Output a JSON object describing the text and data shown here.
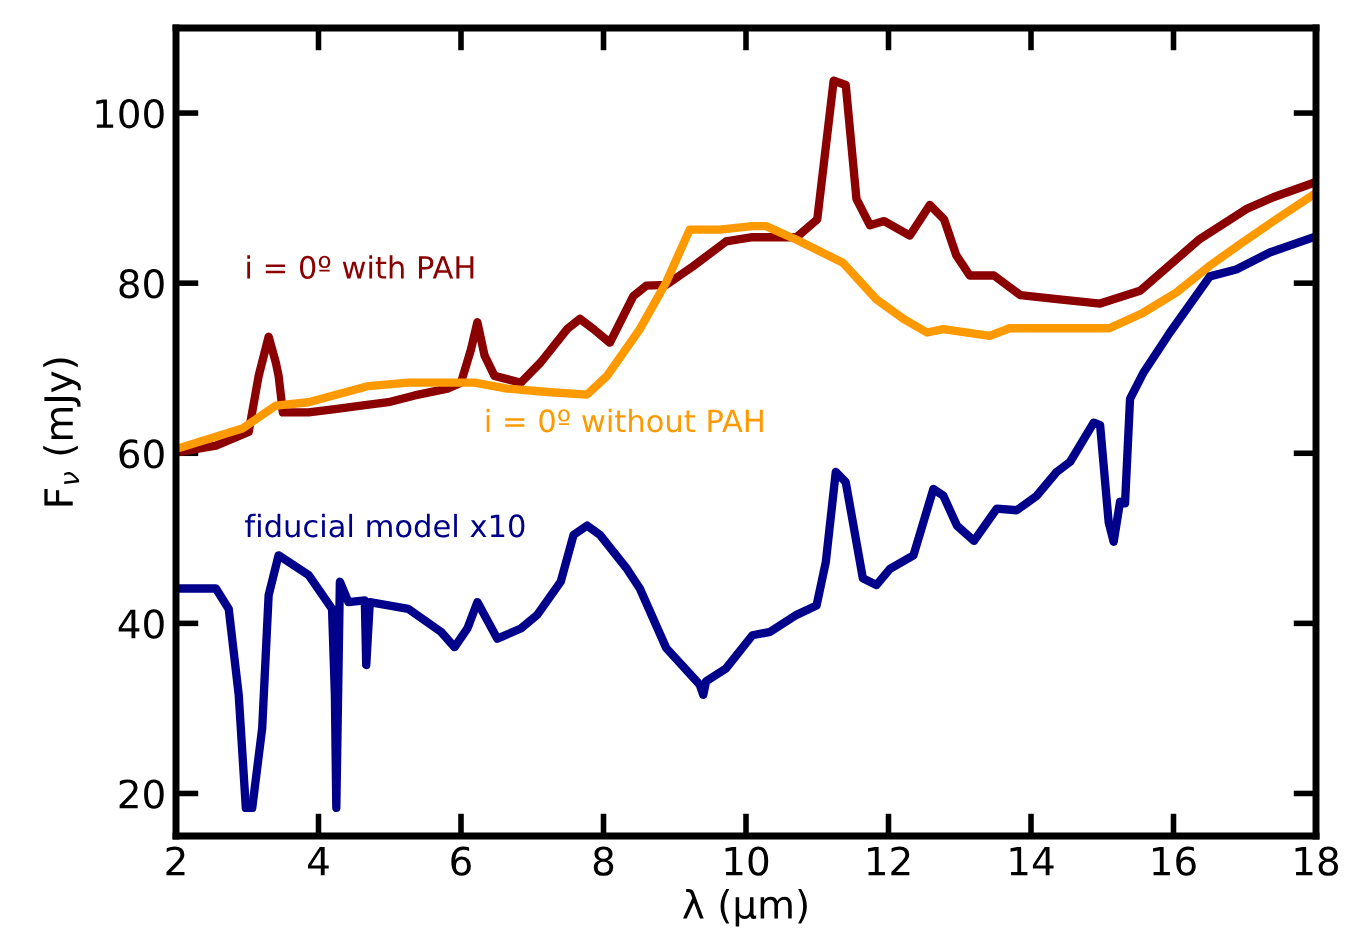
{
  "chart_data": {
    "type": "line",
    "xlabel": "λ (μm)",
    "ylabel": "F$_{ν}$ (mJy)",
    "xlim": [
      2,
      18
    ],
    "ylim": [
      15,
      110
    ],
    "xticks": [
      2,
      4,
      6,
      8,
      10,
      12,
      14,
      16,
      18
    ],
    "yticks": [
      20,
      40,
      60,
      80,
      100
    ],
    "grid": false,
    "legend": false,
    "marker": "none",
    "line_style": "solid",
    "series": [
      {
        "name": "i = 0º with PAH",
        "color": "#8b0000",
        "x": [
          2,
          2.56,
          3.02,
          3.16,
          3.3,
          3.4,
          3.44,
          3.5,
          3.86,
          4.23,
          4.6,
          4.98,
          5.35,
          5.81,
          6.0,
          6.14,
          6.23,
          6.33,
          6.47,
          6.84,
          7.12,
          7.49,
          7.67,
          7.86,
          8.09,
          8.42,
          8.6,
          8.88,
          9.26,
          9.72,
          10.09,
          10.71,
          11.0,
          11.23,
          11.4,
          11.55,
          11.74,
          11.94,
          12.3,
          12.58,
          12.78,
          12.95,
          13.14,
          13.48,
          13.85,
          14.4,
          14.97,
          15.53,
          16.37,
          17.02,
          17.4,
          17.97
        ],
        "values": [
          60.1,
          60.9,
          62.5,
          69.1,
          73.7,
          70.7,
          69.1,
          64.8,
          64.8,
          65.2,
          65.6,
          66.0,
          66.8,
          67.6,
          68.3,
          72.2,
          75.4,
          71.5,
          69.1,
          68.3,
          70.7,
          74.6,
          75.8,
          74.6,
          73.0,
          78.5,
          79.7,
          79.8,
          82.0,
          84.9,
          85.4,
          85.4,
          87.5,
          103.8,
          103.3,
          89.9,
          86.8,
          87.3,
          85.6,
          89.2,
          87.5,
          83.3,
          80.9,
          80.9,
          78.6,
          78.1,
          77.6,
          79.1,
          85.2,
          88.7,
          90.1,
          91.8
        ]
      },
      {
        "name": "i = 0º without PAH",
        "color": "#ff9900",
        "x": [
          2,
          2.93,
          3.4,
          3.86,
          4.7,
          5.26,
          6.19,
          6.65,
          7.21,
          7.77,
          8.05,
          8.51,
          8.88,
          9.21,
          9.63,
          10.09,
          10.28,
          10.71,
          11.36,
          11.83,
          12.21,
          12.54,
          12.77,
          13.42,
          13.7,
          15.1,
          15.57,
          16.04,
          16.5,
          16.97,
          17.44,
          18
        ],
        "values": [
          60.5,
          62.9,
          65.6,
          66.0,
          67.9,
          68.3,
          68.3,
          67.6,
          67.2,
          66.9,
          69.1,
          74.6,
          80.1,
          86.3,
          86.3,
          86.7,
          86.7,
          85.1,
          82.4,
          78.1,
          75.8,
          74.2,
          74.6,
          73.8,
          74.7,
          74.7,
          76.5,
          78.9,
          82.0,
          84.8,
          87.5,
          90.6
        ]
      },
      {
        "name": "fiducial model x10",
        "color": "#00008b",
        "x": [
          2,
          2.56,
          2.74,
          2.88,
          2.98,
          3.07,
          3.21,
          3.3,
          3.44,
          3.86,
          4.19,
          4.23,
          4.25,
          4.3,
          4.42,
          4.65,
          4.67,
          4.72,
          5.26,
          5.72,
          5.91,
          6.09,
          6.23,
          6.51,
          6.84,
          7.07,
          7.4,
          7.58,
          7.77,
          7.95,
          8.33,
          8.51,
          8.88,
          9.35,
          9.4,
          9.44,
          9.72,
          10.09,
          10.34,
          10.71,
          10.99,
          11.12,
          11.26,
          11.4,
          11.64,
          11.83,
          12.02,
          12.35,
          12.63,
          12.77,
          12.96,
          13.2,
          13.52,
          13.8,
          14.08,
          14.36,
          14.55,
          14.88,
          14.97,
          15.09,
          15.16,
          15.25,
          15.32,
          15.39,
          15.58,
          15.95,
          16.51,
          16.88,
          17.35,
          18
        ],
        "values": [
          44.1,
          44.1,
          41.7,
          31.6,
          18.3,
          18.3,
          27.7,
          43.3,
          48.0,
          45.7,
          41.7,
          31.6,
          18.3,
          44.9,
          42.5,
          42.7,
          35.1,
          42.5,
          41.7,
          39.0,
          37.2,
          39.4,
          42.5,
          38.2,
          39.4,
          41.0,
          44.9,
          50.4,
          51.5,
          50.4,
          46.4,
          44.1,
          37.1,
          32.8,
          31.6,
          33.2,
          34.7,
          38.6,
          39.0,
          41.0,
          42.1,
          47.2,
          57.8,
          56.6,
          45.3,
          44.5,
          46.4,
          48.0,
          55.8,
          55.0,
          51.5,
          49.7,
          53.5,
          53.3,
          55.0,
          57.8,
          59.0,
          63.6,
          63.3,
          51.9,
          49.6,
          54.3,
          54.1,
          66.4,
          69.5,
          74.2,
          80.8,
          81.6,
          83.6,
          85.5
        ]
      }
    ]
  }
}
